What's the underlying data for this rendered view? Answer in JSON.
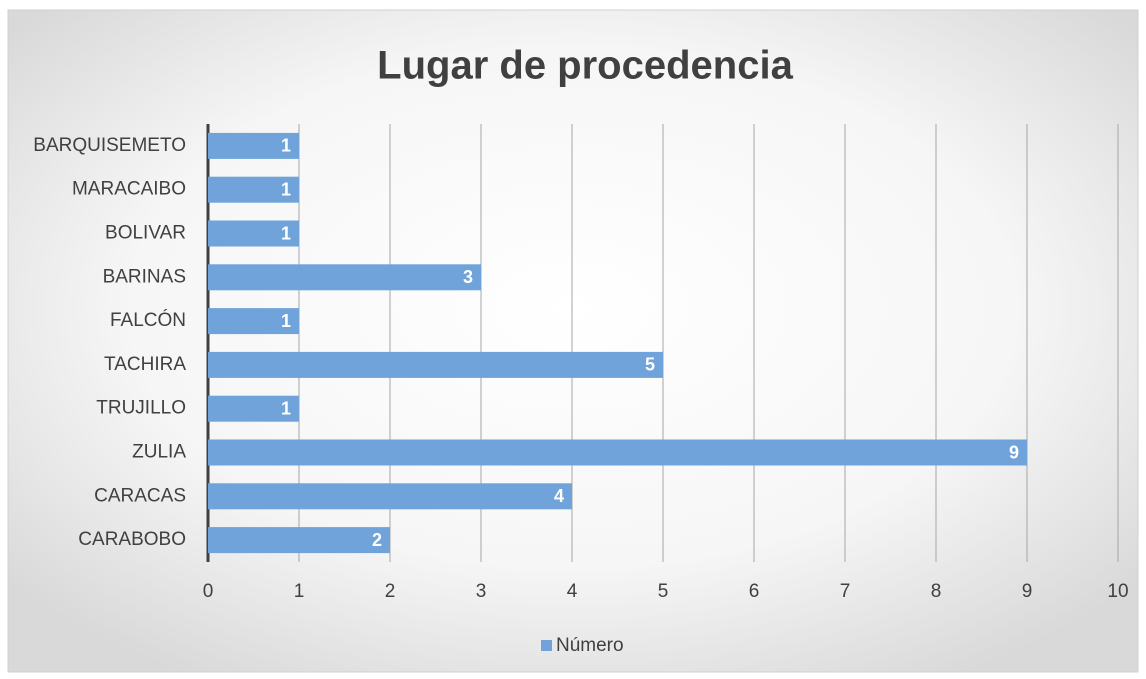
{
  "chart_data": {
    "type": "bar",
    "orientation": "horizontal",
    "title": "Lugar de procedencia",
    "categories": [
      "BARQUISEMETO",
      "MARACAIBO",
      "BOLIVAR",
      "BARINAS",
      "FALCÓN",
      "TACHIRA",
      "TRUJILLO",
      "ZULIA",
      "CARACAS",
      "CARABOBO"
    ],
    "series": [
      {
        "name": "Número",
        "color": "#6fa3d9",
        "values": [
          1,
          1,
          1,
          3,
          1,
          5,
          1,
          9,
          4,
          2
        ]
      }
    ],
    "xlim": [
      0,
      10
    ],
    "xticks": [
      0,
      1,
      2,
      3,
      4,
      5,
      6,
      7,
      8,
      9,
      10
    ],
    "grid": true,
    "legend": "bottom"
  }
}
